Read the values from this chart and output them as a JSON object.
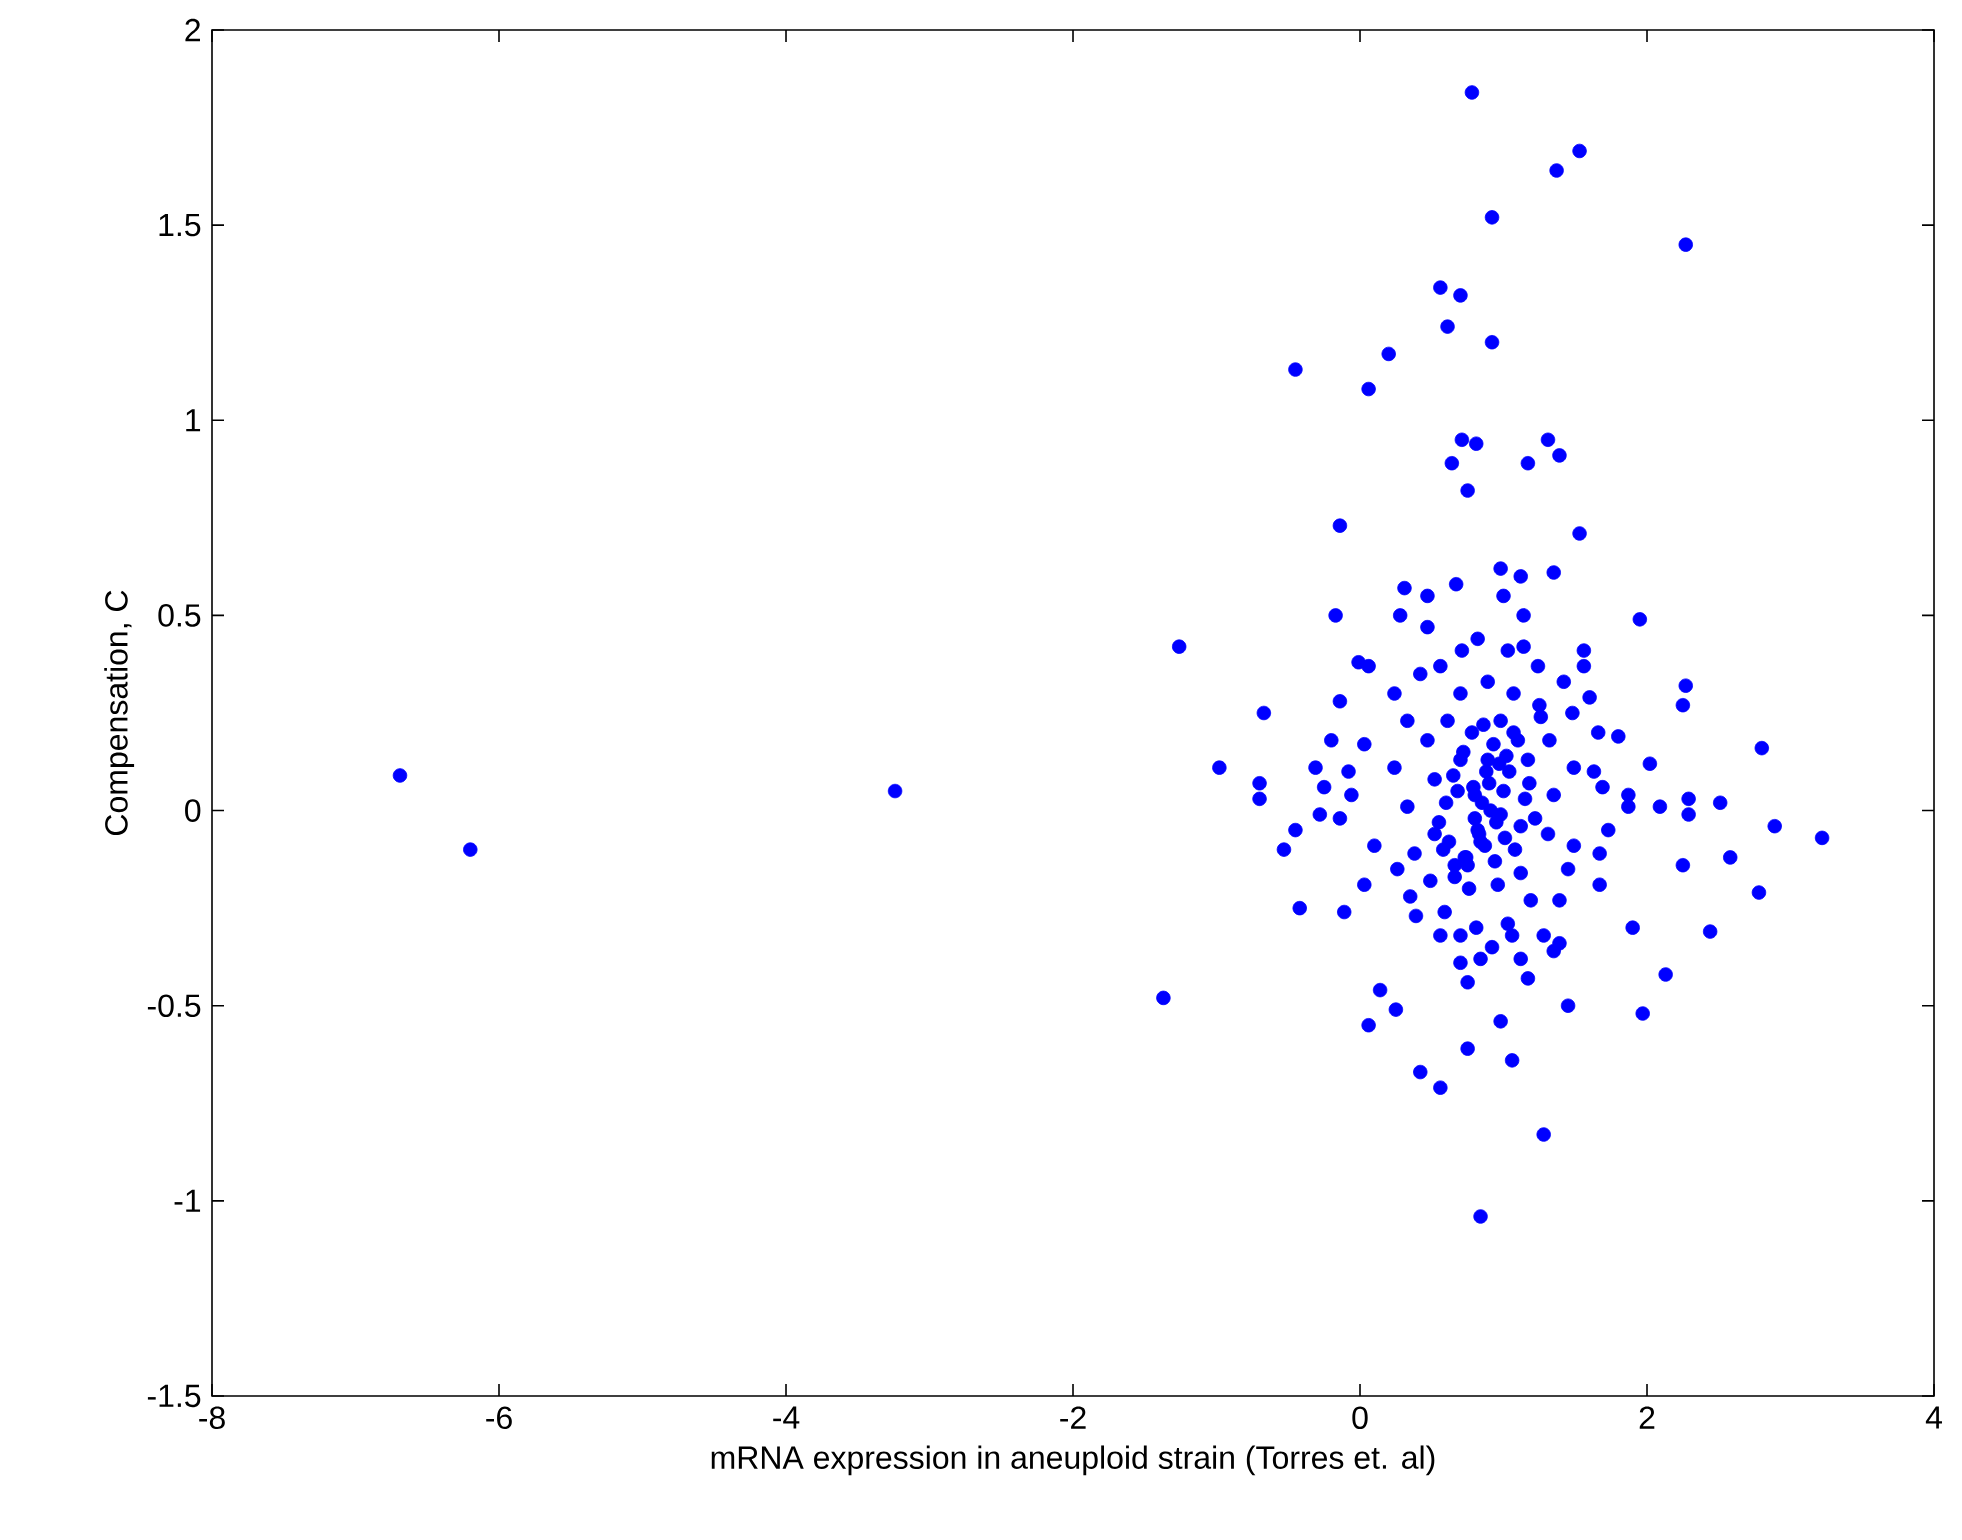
{
  "chart_data": {
    "type": "scatter",
    "xlabel": "mRNA expression in aneuploid strain (Torres et. al)",
    "ylabel": "Compensation, C",
    "xlim": [
      -8,
      4
    ],
    "ylim": [
      -1.5,
      2
    ],
    "xticks": [
      -8,
      -6,
      -4,
      -2,
      0,
      2,
      4
    ],
    "yticks": [
      -1.5,
      -1,
      -0.5,
      0,
      0.5,
      1,
      1.5,
      2
    ],
    "grid": false,
    "legend": false,
    "marker": "circle",
    "series": [
      {
        "color": "#0000ff",
        "x": [
          -6.69,
          -6.2,
          -3.24,
          -1.37,
          -1.26,
          0.78,
          1.53,
          1.37,
          0.92,
          2.27,
          0.56,
          0.7,
          0.61,
          0.92,
          0.2,
          -0.45,
          0.06,
          0.71,
          0.81,
          1.31,
          1.39,
          0.64,
          1.17,
          0.75,
          -0.14,
          1.53,
          0.98,
          1.12,
          1.35,
          0.31,
          0.47,
          0.67,
          -0.17,
          1.95,
          0.28,
          0.47,
          1.0,
          1.14,
          1.56,
          -0.01,
          0.06,
          1.56,
          2.27,
          2.25,
          -0.67,
          -0.14,
          -0.2,
          -0.98,
          -0.7,
          -0.7,
          -0.31,
          -0.25,
          -0.28,
          -0.45,
          -0.53,
          0.03,
          -0.42,
          -0.11,
          2.8,
          2.02,
          2.51,
          2.89,
          3.22,
          2.09,
          2.29,
          2.29,
          2.25,
          2.58,
          2.78,
          1.9,
          2.44,
          2.13,
          1.97,
          1.67,
          1.45,
          0.98,
          0.75,
          1.06,
          0.42,
          0.56,
          0.14,
          0.25,
          0.06,
          1.28,
          0.84,
          0.56,
          0.7,
          0.81,
          1.03,
          1.06,
          1.28,
          1.39,
          1.35,
          0.92,
          0.84,
          1.12,
          1.17,
          0.7,
          0.75,
          0.39,
          0.35,
          0.59,
          1.19,
          1.39,
          1.67,
          1.45,
          1.73,
          1.87,
          1.87,
          1.6,
          1.48,
          1.66,
          1.8,
          1.42,
          1.24,
          1.14,
          1.03,
          0.82,
          0.71,
          0.56,
          0.42,
          0.24,
          0.33,
          0.61,
          0.98,
          1.26,
          1.32,
          1.49,
          1.63,
          1.69,
          0.03,
          -0.08,
          -0.06,
          -0.14,
          0.1,
          0.26,
          0.49,
          0.24,
          0.33,
          0.52,
          0.75,
          0.96,
          1.12,
          1.31,
          1.49,
          1.35,
          1.17,
          0.89,
          0.7,
          0.52,
          0.8,
          0.98,
          0.84,
          1.12,
          1.07,
          0.89,
          0.7,
          0.47,
          1.07,
          0.66,
          0.38,
          0.85,
          0.9,
          0.95,
          0.8,
          1.0,
          0.6,
          0.65,
          0.72,
          0.78,
          0.86,
          0.93,
          1.02,
          1.1,
          1.18,
          0.55,
          0.62,
          0.68,
          0.74,
          0.82,
          0.88,
          0.97,
          1.04,
          1.15,
          1.22,
          0.58,
          0.66,
          0.76,
          0.87,
          0.94,
          1.08,
          0.73,
          0.83,
          0.91,
          1.01,
          0.79,
          1.25
        ],
        "values": [
          0.09,
          -0.1,
          0.05,
          -0.48,
          0.42,
          1.84,
          1.69,
          1.64,
          1.52,
          1.45,
          1.34,
          1.32,
          1.24,
          1.2,
          1.17,
          1.13,
          1.08,
          0.95,
          0.94,
          0.95,
          0.91,
          0.89,
          0.89,
          0.82,
          0.73,
          0.71,
          0.62,
          0.6,
          0.61,
          0.57,
          0.55,
          0.58,
          0.5,
          0.49,
          0.5,
          0.47,
          0.55,
          0.5,
          0.41,
          0.38,
          0.37,
          0.37,
          0.32,
          0.27,
          0.25,
          0.28,
          0.18,
          0.11,
          0.07,
          0.03,
          0.11,
          0.06,
          -0.01,
          -0.05,
          -0.1,
          -0.19,
          -0.25,
          -0.26,
          0.16,
          0.12,
          0.02,
          -0.04,
          -0.07,
          0.01,
          0.03,
          -0.01,
          -0.14,
          -0.12,
          -0.21,
          -0.3,
          -0.31,
          -0.42,
          -0.52,
          -0.19,
          -0.5,
          -0.54,
          -0.61,
          -0.64,
          -0.67,
          -0.71,
          -0.46,
          -0.51,
          -0.55,
          -0.83,
          -1.04,
          -0.32,
          -0.32,
          -0.3,
          -0.29,
          -0.32,
          -0.32,
          -0.34,
          -0.36,
          -0.35,
          -0.38,
          -0.38,
          -0.43,
          -0.39,
          -0.44,
          -0.27,
          -0.22,
          -0.26,
          -0.23,
          -0.23,
          -0.11,
          -0.15,
          -0.05,
          0.04,
          0.01,
          0.29,
          0.25,
          0.2,
          0.19,
          0.33,
          0.37,
          0.42,
          0.41,
          0.44,
          0.41,
          0.37,
          0.35,
          0.3,
          0.23,
          0.23,
          0.23,
          0.24,
          0.18,
          0.11,
          0.1,
          0.06,
          0.17,
          0.1,
          0.04,
          -0.02,
          -0.09,
          -0.15,
          -0.18,
          0.11,
          0.01,
          -0.06,
          -0.14,
          -0.19,
          -0.16,
          -0.06,
          -0.09,
          0.04,
          0.13,
          0.13,
          0.13,
          0.08,
          0.04,
          -0.01,
          -0.08,
          -0.04,
          0.3,
          0.33,
          0.3,
          0.18,
          0.2,
          -0.14,
          -0.11,
          0.02,
          0.07,
          -0.03,
          -0.02,
          0.05,
          0.02,
          0.09,
          0.15,
          0.2,
          0.22,
          0.17,
          0.14,
          0.18,
          0.07,
          -0.03,
          -0.08,
          0.05,
          -0.12,
          -0.05,
          0.1,
          0.12,
          0.1,
          0.03,
          -0.02,
          -0.1,
          -0.17,
          -0.2,
          -0.09,
          -0.13,
          -0.1,
          -0.12,
          -0.06,
          0.0,
          -0.07,
          0.06,
          0.27
        ]
      }
    ]
  }
}
